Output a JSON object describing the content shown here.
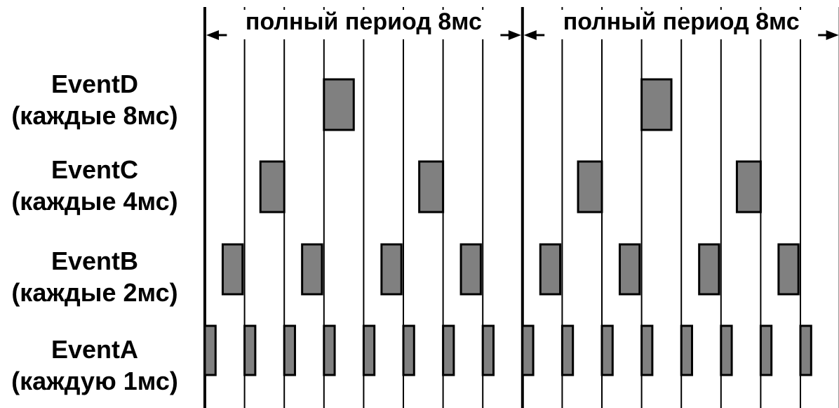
{
  "period_label": "полный период 8мс",
  "colors": {
    "stroke": "#000000",
    "block_fill": "#808080",
    "background": "#ffffff"
  },
  "rows": [
    {
      "name": "EventD",
      "interval": "(каждые 8мс)",
      "period_ms": 8,
      "offset_ms": 3,
      "duration_ms": 0.75
    },
    {
      "name": "EventC",
      "interval": "(каждые 4мс)",
      "period_ms": 4,
      "offset_ms": 1.4,
      "duration_ms": 0.6
    },
    {
      "name": "EventB",
      "interval": "(каждые 2мс)",
      "period_ms": 2,
      "offset_ms": 0.45,
      "duration_ms": 0.5
    },
    {
      "name": "EventA",
      "interval": "(каждую 1мс)",
      "period_ms": 1,
      "offset_ms": 0,
      "duration_ms": 0.27
    }
  ],
  "total_ms": 16,
  "major_tick_every_ms": 8
}
